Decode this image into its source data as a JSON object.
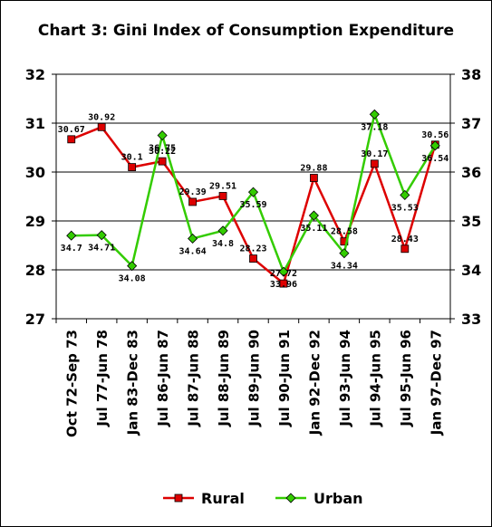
{
  "chart_data": {
    "type": "line",
    "title": "Chart 3: Gini Index of Consumption Expenditure",
    "categories": [
      "Oct 72-Sep 73",
      "Jul 77-Jun 78",
      "Jan 83-Dec 83",
      "Jul 86-Jun 87",
      "Jul 87-Jun 88",
      "Jul 88-Jun 89",
      "Jul 89-Jun 90",
      "Jul 90-Jun 91",
      "Jan 92-Dec 92",
      "Jul 93-Jun 94",
      "Jul 94-Jun 95",
      "Jul 95-Jun 96",
      "Jan 97-Dec 97"
    ],
    "series": [
      {
        "name": "Rural",
        "axis": "left",
        "color": "#dd0000",
        "values": [
          30.67,
          30.92,
          30.1,
          30.22,
          29.39,
          29.51,
          28.23,
          27.72,
          29.88,
          28.58,
          30.17,
          28.43,
          30.56
        ],
        "labels": [
          "30.67",
          "30.92",
          "30.1",
          "30.22",
          "29.39",
          "29.51",
          "28.23",
          "27.72",
          "29.88",
          "28.58",
          "30.17",
          "28.43",
          "30.56"
        ]
      },
      {
        "name": "Urban",
        "axis": "right",
        "color": "#33cc00",
        "values": [
          34.7,
          34.71,
          34.08,
          36.75,
          34.64,
          34.8,
          35.59,
          33.96,
          35.11,
          34.34,
          37.18,
          35.53,
          36.54
        ],
        "labels": [
          "34.7",
          "34.71",
          "34.08",
          "36.75",
          "34.64",
          "34.8",
          "35.59",
          "33.96",
          "35.11",
          "34.34",
          "37.18",
          "35.53",
          "36.54"
        ]
      }
    ],
    "ylim_left": [
      27,
      32
    ],
    "yticks_left": [
      "27",
      "28",
      "29",
      "30",
      "31",
      "32"
    ],
    "ylim_right": [
      33,
      38
    ],
    "yticks_right": [
      "33",
      "34",
      "35",
      "36",
      "37",
      "38"
    ],
    "grid": true,
    "legend_position": "bottom"
  }
}
